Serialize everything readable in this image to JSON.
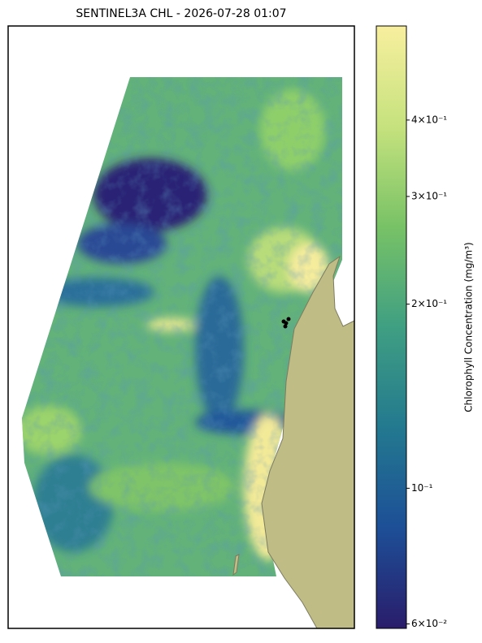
{
  "title": "SENTINEL3A CHL - 2026-07-28 01:07",
  "colorbar": {
    "label": "Chlorophyll Concentration (mg/m³)",
    "scale": "log",
    "lim": [
      0.059,
      0.57
    ],
    "ticks": [
      {
        "value": 0.06,
        "label": "6×10⁻²"
      },
      {
        "value": 0.1,
        "label": "10⁻¹"
      },
      {
        "value": 0.2,
        "label": "2×10⁻¹"
      },
      {
        "value": 0.3,
        "label": "3×10⁻¹"
      },
      {
        "value": 0.4,
        "label": "4×10⁻¹"
      }
    ],
    "colors": [
      "#2a1d6b",
      "#1d4f97",
      "#23798f",
      "#3f9f82",
      "#78c266",
      "#c6e27e",
      "#f8ef9e"
    ]
  }
}
